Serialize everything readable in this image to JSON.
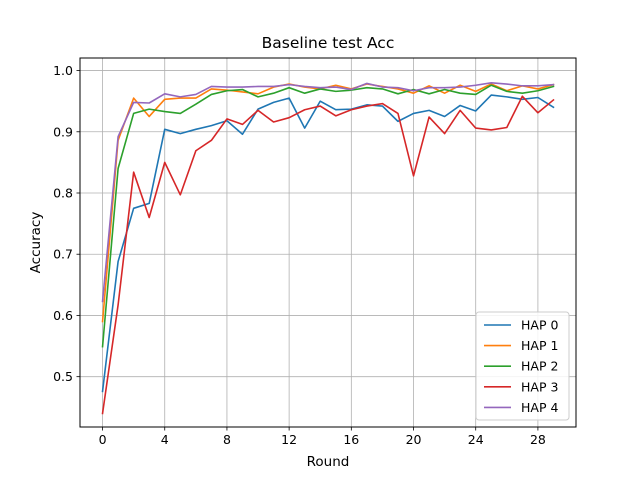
{
  "chart_data": {
    "type": "line",
    "title": "Baseline test Acc",
    "xlabel": "Round",
    "ylabel": "Accuracy",
    "xlim": [
      -1.45,
      30.45
    ],
    "ylim": [
      0.4178,
      1.0205
    ],
    "xticks": [
      0,
      4,
      8,
      12,
      16,
      20,
      24,
      28
    ],
    "xtick_labels": [
      "0",
      "4",
      "8",
      "12",
      "16",
      "20",
      "24",
      "28"
    ],
    "yticks": [
      0.5,
      0.6,
      0.7,
      0.8,
      0.9,
      1.0
    ],
    "ytick_labels": [
      "0.5",
      "0.6",
      "0.7",
      "0.8",
      "0.9",
      "1.0"
    ],
    "grid": true,
    "legend_position": "lower-right",
    "x": [
      0,
      1,
      2,
      3,
      4,
      5,
      6,
      7,
      8,
      9,
      10,
      11,
      12,
      13,
      14,
      15,
      16,
      17,
      18,
      19,
      20,
      21,
      22,
      23,
      24,
      25,
      26,
      27,
      28,
      29
    ],
    "series": [
      {
        "name": "HAP 0",
        "color": "#1f77b4",
        "values": [
          0.476,
          0.688,
          0.775,
          0.783,
          0.904,
          0.897,
          0.904,
          0.91,
          0.918,
          0.896,
          0.937,
          0.948,
          0.955,
          0.906,
          0.95,
          0.936,
          0.937,
          0.944,
          0.942,
          0.917,
          0.93,
          0.935,
          0.925,
          0.943,
          0.934,
          0.96,
          0.957,
          0.953,
          0.956,
          0.94
        ]
      },
      {
        "name": "HAP 1",
        "color": "#ff7f0e",
        "values": [
          0.59,
          0.886,
          0.955,
          0.925,
          0.953,
          0.955,
          0.955,
          0.97,
          0.968,
          0.965,
          0.962,
          0.973,
          0.978,
          0.973,
          0.97,
          0.976,
          0.97,
          0.978,
          0.974,
          0.97,
          0.963,
          0.975,
          0.963,
          0.976,
          0.966,
          0.978,
          0.967,
          0.975,
          0.97,
          0.977
        ]
      },
      {
        "name": "HAP 2",
        "color": "#2ca02c",
        "values": [
          0.549,
          0.84,
          0.93,
          0.937,
          0.933,
          0.93,
          0.945,
          0.961,
          0.967,
          0.969,
          0.957,
          0.963,
          0.972,
          0.963,
          0.97,
          0.966,
          0.968,
          0.972,
          0.97,
          0.962,
          0.969,
          0.962,
          0.969,
          0.963,
          0.961,
          0.976,
          0.966,
          0.963,
          0.967,
          0.974
        ]
      },
      {
        "name": "HAP 3",
        "color": "#d62728",
        "values": [
          0.44,
          0.617,
          0.834,
          0.76,
          0.85,
          0.797,
          0.869,
          0.886,
          0.921,
          0.912,
          0.935,
          0.916,
          0.923,
          0.936,
          0.942,
          0.926,
          0.936,
          0.942,
          0.946,
          0.93,
          0.828,
          0.924,
          0.897,
          0.935,
          0.906,
          0.903,
          0.907,
          0.958,
          0.931,
          0.952
        ]
      },
      {
        "name": "HAP 4",
        "color": "#9467bd",
        "values": [
          0.623,
          0.892,
          0.948,
          0.947,
          0.962,
          0.957,
          0.961,
          0.974,
          0.973,
          0.973,
          0.974,
          0.974,
          0.977,
          0.974,
          0.972,
          0.973,
          0.969,
          0.979,
          0.973,
          0.972,
          0.967,
          0.972,
          0.972,
          0.973,
          0.976,
          0.98,
          0.978,
          0.975,
          0.975,
          0.977
        ]
      }
    ]
  }
}
